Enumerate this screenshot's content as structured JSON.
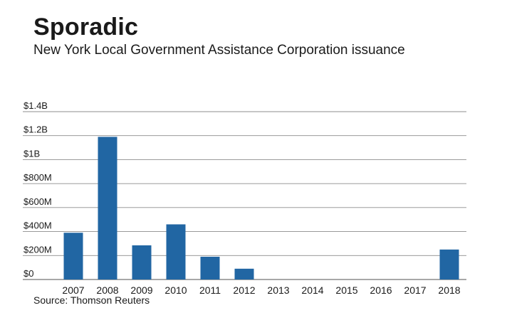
{
  "title": "Sporadic",
  "subtitle": "New York Local Government Assistance Corporation issuance",
  "source": "Source: Thomson Reuters",
  "colors": {
    "bar": "#2166a3",
    "grid": "#8c8c8c",
    "text": "#1a1a1a"
  },
  "chart_data": {
    "type": "bar",
    "title": "Sporadic",
    "subtitle": "New York Local Government Assistance Corporation issuance",
    "xlabel": "",
    "ylabel": "",
    "categories": [
      "2007",
      "2008",
      "2009",
      "2010",
      "2011",
      "2012",
      "2013",
      "2014",
      "2015",
      "2016",
      "2017",
      "2018"
    ],
    "values": [
      390,
      1190,
      285,
      460,
      190,
      90,
      0,
      0,
      0,
      0,
      0,
      250
    ],
    "units": "$M",
    "ylim": [
      0,
      1400
    ],
    "yticks": [
      0,
      200,
      400,
      600,
      800,
      1000,
      1200,
      1400
    ],
    "ytick_labels": [
      "$0",
      "$200M",
      "$400M",
      "$600M",
      "$800M",
      "$1B",
      "$1.2B",
      "$1.4B"
    ],
    "grid": true,
    "legend": "none"
  }
}
